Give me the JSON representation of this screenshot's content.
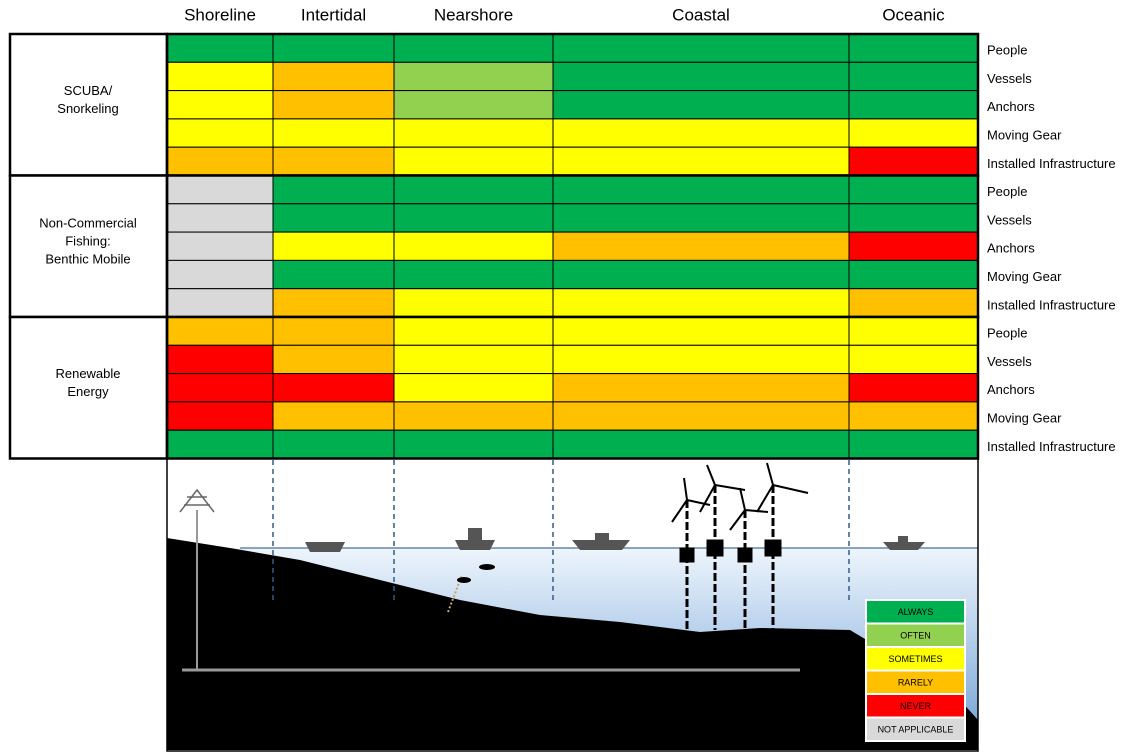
{
  "columns": [
    "Shoreline",
    "Intertidal",
    "Nearshore",
    "Coastal",
    "Oceanic"
  ],
  "groups": [
    {
      "label": [
        "SCUBA/",
        "Snorkeling"
      ],
      "rows": [
        {
          "label": "People",
          "cells": [
            "ALWAYS",
            "ALWAYS",
            "ALWAYS",
            "ALWAYS",
            "ALWAYS"
          ]
        },
        {
          "label": "Vessels",
          "cells": [
            "SOMETIMES",
            "RARELY",
            "OFTEN",
            "ALWAYS",
            "ALWAYS"
          ]
        },
        {
          "label": "Anchors",
          "cells": [
            "SOMETIMES",
            "RARELY",
            "OFTEN",
            "ALWAYS",
            "ALWAYS"
          ]
        },
        {
          "label": "Moving Gear",
          "cells": [
            "SOMETIMES",
            "SOMETIMES",
            "SOMETIMES",
            "SOMETIMES",
            "SOMETIMES"
          ]
        },
        {
          "label": "Installed Infrastructure",
          "cells": [
            "RARELY",
            "RARELY",
            "SOMETIMES",
            "SOMETIMES",
            "NEVER"
          ]
        }
      ]
    },
    {
      "label": [
        "Non-Commercial",
        "Fishing:",
        "Benthic Mobile"
      ],
      "rows": [
        {
          "label": "People",
          "cells": [
            "NOT APPLICABLE",
            "ALWAYS",
            "ALWAYS",
            "ALWAYS",
            "ALWAYS"
          ]
        },
        {
          "label": "Vessels",
          "cells": [
            "NOT APPLICABLE",
            "ALWAYS",
            "ALWAYS",
            "ALWAYS",
            "ALWAYS"
          ]
        },
        {
          "label": "Anchors",
          "cells": [
            "NOT APPLICABLE",
            "SOMETIMES",
            "SOMETIMES",
            "RARELY",
            "NEVER"
          ]
        },
        {
          "label": "Moving Gear",
          "cells": [
            "NOT APPLICABLE",
            "ALWAYS",
            "ALWAYS",
            "ALWAYS",
            "ALWAYS"
          ]
        },
        {
          "label": "Installed Infrastructure",
          "cells": [
            "NOT APPLICABLE",
            "RARELY",
            "SOMETIMES",
            "SOMETIMES",
            "RARELY"
          ]
        }
      ]
    },
    {
      "label": [
        "Renewable",
        "Energy"
      ],
      "rows": [
        {
          "label": "People",
          "cells": [
            "RARELY",
            "RARELY",
            "SOMETIMES",
            "SOMETIMES",
            "SOMETIMES"
          ]
        },
        {
          "label": "Vessels",
          "cells": [
            "NEVER",
            "RARELY",
            "SOMETIMES",
            "SOMETIMES",
            "SOMETIMES"
          ]
        },
        {
          "label": "Anchors",
          "cells": [
            "NEVER",
            "NEVER",
            "SOMETIMES",
            "RARELY",
            "NEVER"
          ]
        },
        {
          "label": "Moving Gear",
          "cells": [
            "NEVER",
            "RARELY",
            "RARELY",
            "RARELY",
            "RARELY"
          ]
        },
        {
          "label": "Installed Infrastructure",
          "cells": [
            "ALWAYS",
            "ALWAYS",
            "ALWAYS",
            "ALWAYS",
            "ALWAYS"
          ]
        }
      ]
    }
  ],
  "legend": [
    {
      "label": "ALWAYS",
      "color": "#00b050"
    },
    {
      "label": "OFTEN",
      "color": "#92d050"
    },
    {
      "label": "SOMETIMES",
      "color": "#ffff00"
    },
    {
      "label": "RARELY",
      "color": "#ffc000"
    },
    {
      "label": "NEVER",
      "color": "#ff0000"
    },
    {
      "label": "NOT APPLICABLE",
      "color": "#d9d9d9"
    }
  ]
}
